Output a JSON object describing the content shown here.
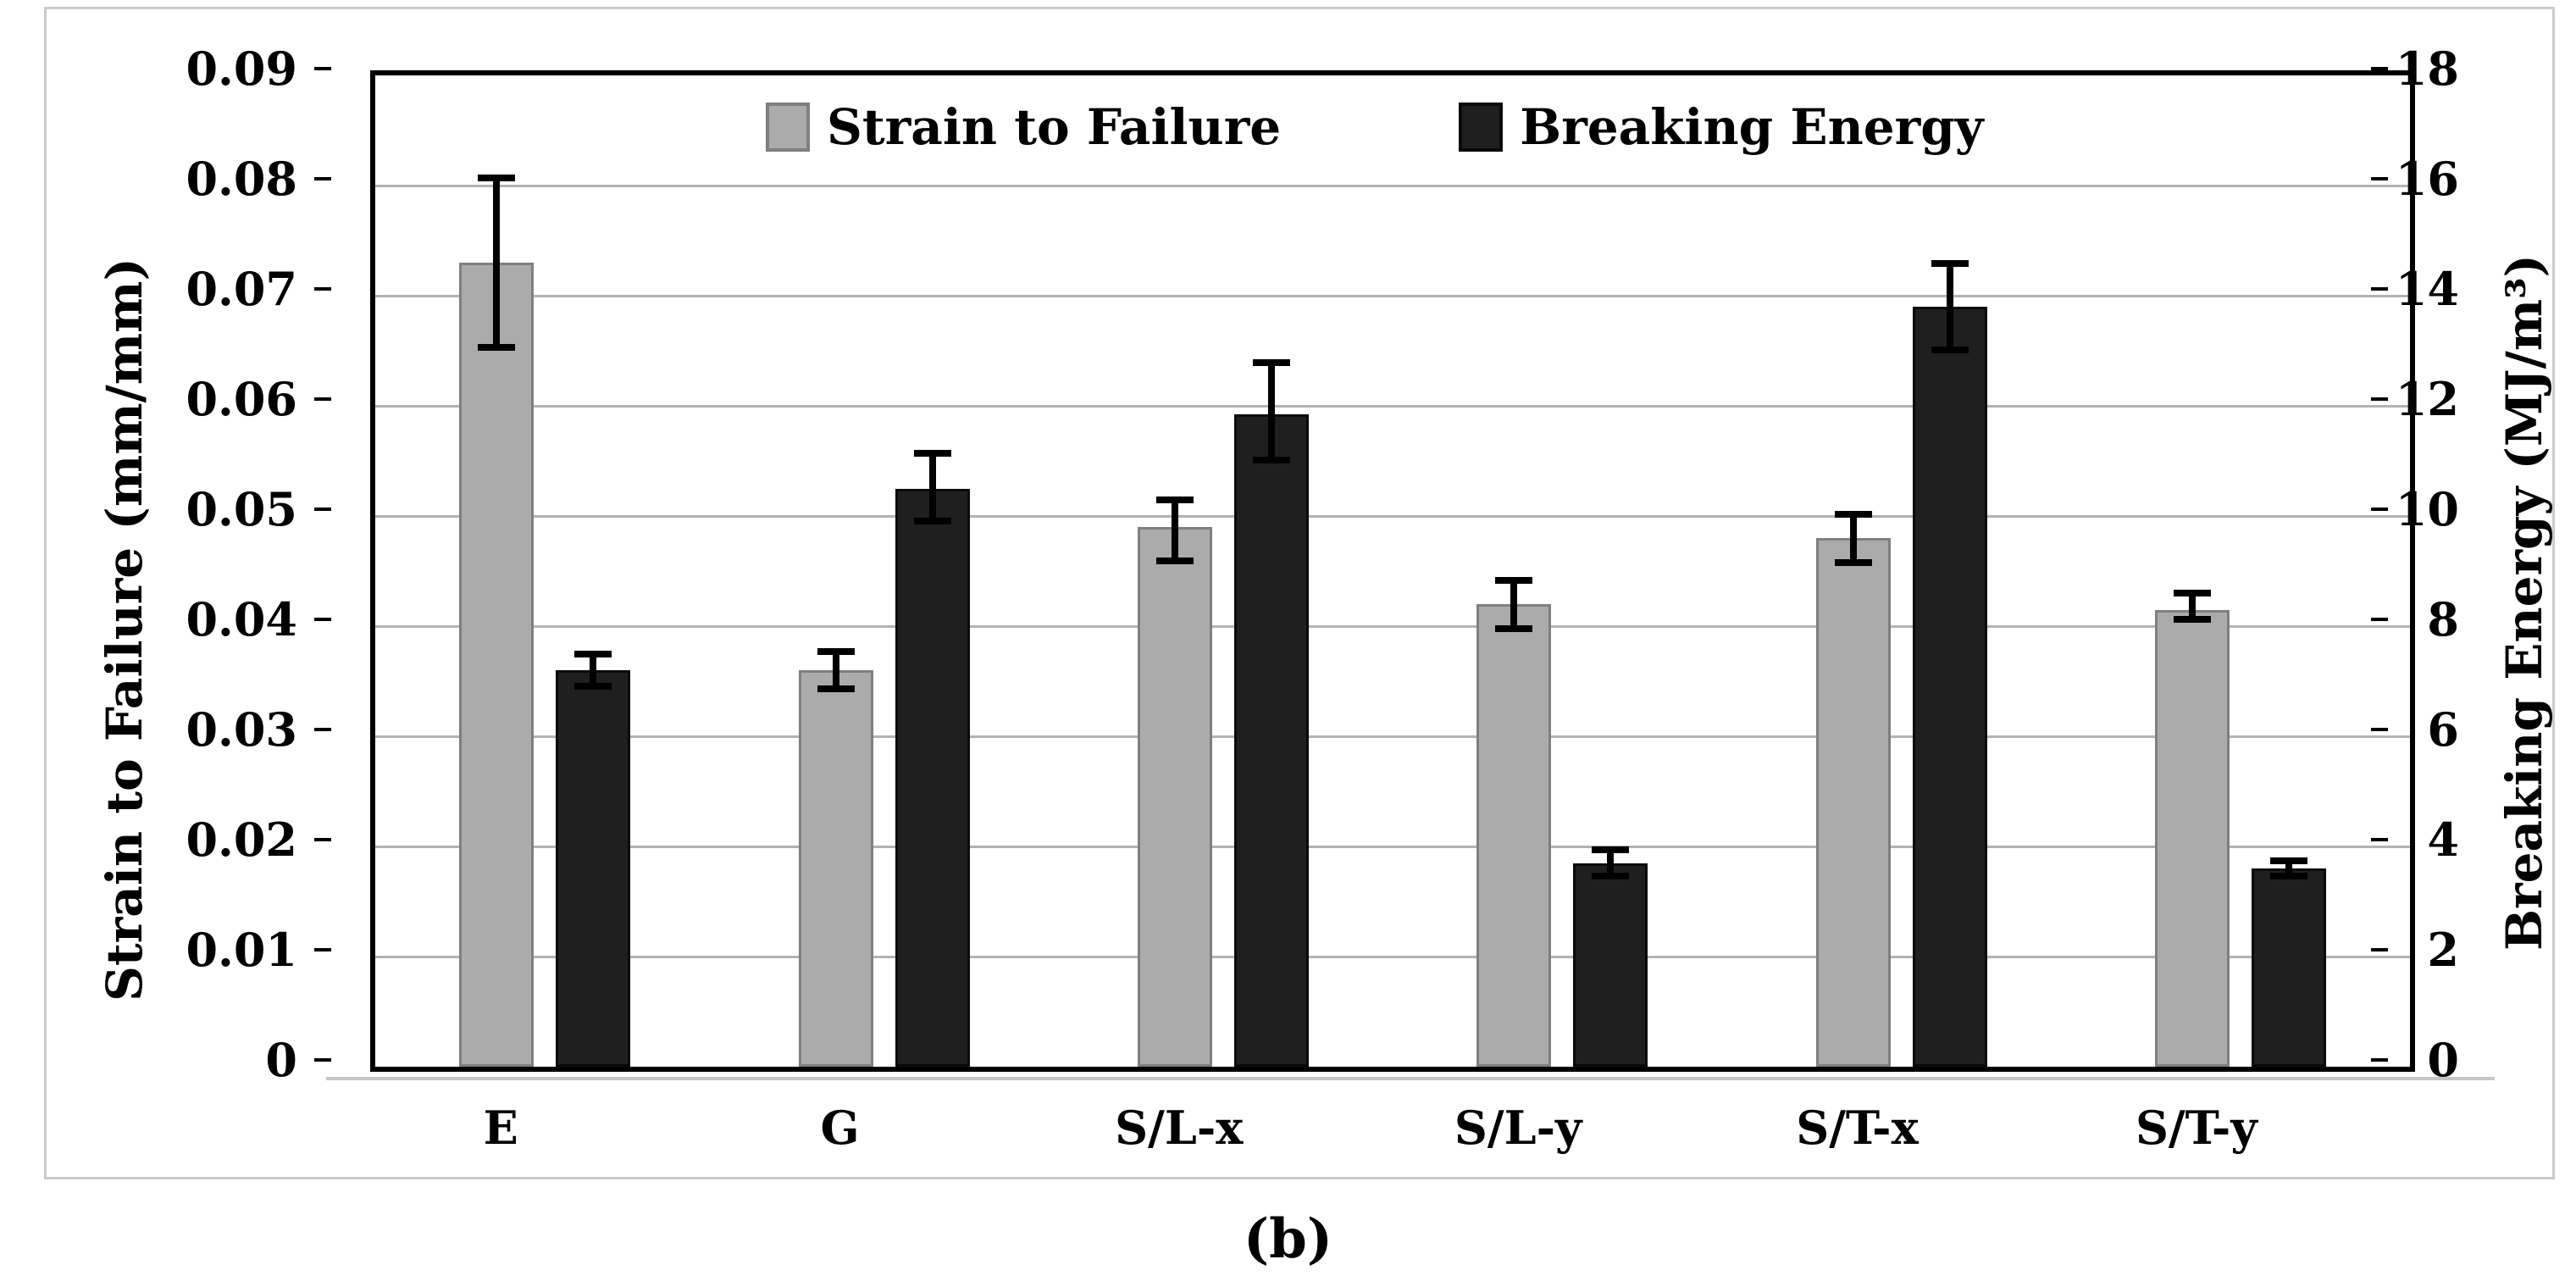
{
  "caption": "(b)",
  "colors": {
    "background": "#FFFFFF",
    "figure_border": "#CBCBCB",
    "axis": "#000000",
    "gridline": "#B3B3B3",
    "gray_series_fill": "#ABABAB",
    "gray_series_border": "#7F7F7F",
    "black_series_fill": "#1F1F1F",
    "black_series_border": "#0A0A0A"
  },
  "chart_data": {
    "type": "bar",
    "title": "",
    "grid": true,
    "legend_position": "top-center",
    "categories": [
      "E",
      "G",
      "S/L-x",
      "S/L-y",
      "S/T-x",
      "S/T-y"
    ],
    "left_axis": {
      "title": "Strain to Failure (mm/mm)",
      "min": 0,
      "max": 0.09,
      "step": 0.01,
      "ticks": [
        "0",
        "0.01",
        "0.02",
        "0.03",
        "0.04",
        "0.05",
        "0.06",
        "0.07",
        "0.08",
        "0.09"
      ]
    },
    "right_axis": {
      "title": "Breaking Energy (MJ/m³)",
      "min": 0,
      "max": 18,
      "step": 2,
      "ticks": [
        "0",
        "2",
        "4",
        "6",
        "8",
        "10",
        "12",
        "14",
        "16",
        "18"
      ]
    },
    "series": [
      {
        "name": "Strain to Failure",
        "axis": "left",
        "color": "#ABABAB",
        "border_color": "#7F7F7F",
        "values": [
          0.073,
          0.036,
          0.049,
          0.042,
          0.048,
          0.0415
        ],
        "err_low": [
          0.065,
          0.034,
          0.0456,
          0.0395,
          0.0455,
          0.0403
        ],
        "err_high": [
          0.081,
          0.038,
          0.0518,
          0.0445,
          0.0505,
          0.0433
        ]
      },
      {
        "name": "Breaking Energy",
        "axis": "right",
        "color": "#1F1F1F",
        "border_color": "#0A0A0A",
        "values": [
          7.2,
          10.5,
          11.85,
          3.7,
          13.8,
          3.6
        ],
        "err_low": [
          6.85,
          9.85,
          10.95,
          3.4,
          12.95,
          3.4
        ],
        "err_high": [
          7.55,
          11.2,
          12.85,
          4.0,
          14.65,
          3.8
        ]
      }
    ]
  }
}
